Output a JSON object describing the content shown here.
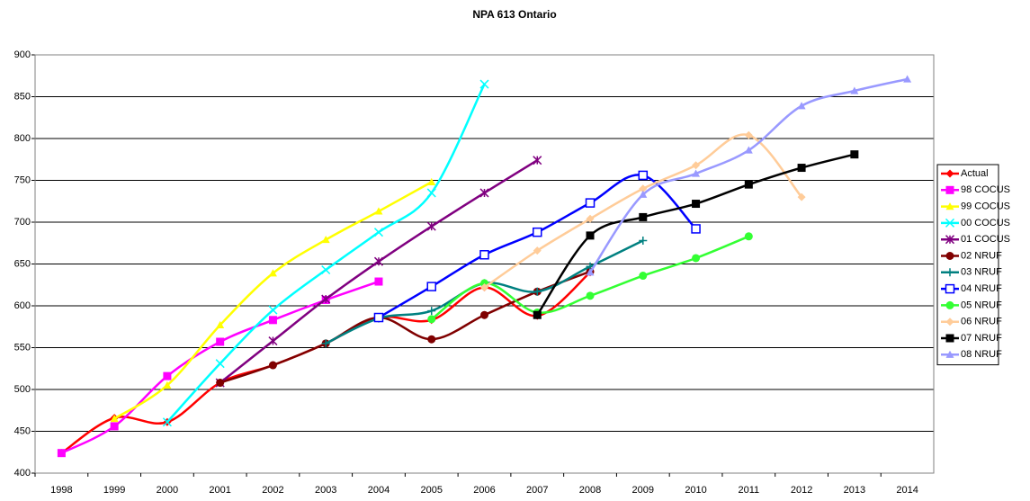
{
  "chart_data": {
    "type": "line",
    "title": "NPA 613 Ontario",
    "categories": [
      "1998",
      "1999",
      "2000",
      "2001",
      "2002",
      "2003",
      "2004",
      "2005",
      "2006",
      "2007",
      "2008",
      "2009",
      "2010",
      "2011",
      "2012",
      "2013",
      "2014"
    ],
    "ylim": [
      400,
      900
    ],
    "yticks": [
      400,
      450,
      500,
      550,
      600,
      650,
      700,
      750,
      800,
      850,
      900
    ],
    "grid": true,
    "smooth": true,
    "legend": "right",
    "series": [
      {
        "name": "Actual",
        "color": "#ff0000",
        "marker": "diamond",
        "values": [
          424,
          466,
          461,
          508,
          529,
          555,
          586,
          583,
          622,
          588,
          640,
          null,
          null,
          null,
          null,
          null,
          null
        ]
      },
      {
        "name": "98 COCUS",
        "color": "#ff00ff",
        "marker": "square",
        "values": [
          424,
          456,
          516,
          557,
          583,
          607,
          629,
          null,
          null,
          null,
          null,
          null,
          null,
          null,
          null,
          null,
          null
        ]
      },
      {
        "name": "99 COCUS",
        "color": "#ffff00",
        "marker": "triangle",
        "values": [
          null,
          465,
          505,
          577,
          639,
          679,
          713,
          748,
          null,
          null,
          null,
          null,
          null,
          null,
          null,
          null,
          null
        ]
      },
      {
        "name": "00 COCUS",
        "color": "#00ffff",
        "marker": "x",
        "values": [
          null,
          null,
          461,
          531,
          595,
          643,
          688,
          735,
          865,
          null,
          null,
          null,
          null,
          null,
          null,
          null,
          null
        ]
      },
      {
        "name": "01 COCUS",
        "color": "#800080",
        "marker": "star",
        "values": [
          null,
          null,
          null,
          508,
          558,
          608,
          653,
          695,
          735,
          774,
          null,
          null,
          null,
          null,
          null,
          null,
          null
        ]
      },
      {
        "name": "02 NRUF",
        "color": "#800000",
        "marker": "circle",
        "values": [
          null,
          null,
          null,
          508,
          529,
          555,
          586,
          560,
          589,
          617,
          641,
          null,
          null,
          null,
          null,
          null,
          null
        ]
      },
      {
        "name": "03 NRUF",
        "color": "#008080",
        "marker": "plus",
        "values": [
          null,
          null,
          null,
          null,
          null,
          555,
          585,
          594,
          627,
          617,
          647,
          678,
          null,
          null,
          null,
          null,
          null
        ]
      },
      {
        "name": "04 NRUF",
        "color": "#0000ff",
        "marker": "opensquare",
        "values": [
          null,
          null,
          null,
          null,
          null,
          null,
          586,
          623,
          661,
          688,
          723,
          756,
          692,
          null,
          null,
          null,
          null
        ]
      },
      {
        "name": "05 NRUF",
        "color": "#33ff33",
        "marker": "circle",
        "values": [
          null,
          null,
          null,
          null,
          null,
          null,
          null,
          584,
          627,
          592,
          612,
          636,
          657,
          683,
          null,
          null,
          null
        ]
      },
      {
        "name": "06 NRUF",
        "color": "#ffcc99",
        "marker": "diamond",
        "values": [
          null,
          null,
          null,
          null,
          null,
          null,
          null,
          null,
          622,
          666,
          704,
          740,
          768,
          804,
          730,
          null,
          null
        ]
      },
      {
        "name": "07 NRUF",
        "color": "#000000",
        "marker": "square",
        "values": [
          null,
          null,
          null,
          null,
          null,
          null,
          null,
          null,
          null,
          589,
          684,
          706,
          722,
          745,
          765,
          781,
          null
        ]
      },
      {
        "name": "08 NRUF",
        "color": "#9999ff",
        "marker": "triangle",
        "values": [
          null,
          null,
          null,
          null,
          null,
          null,
          null,
          null,
          null,
          null,
          640,
          733,
          758,
          786,
          839,
          857,
          871
        ]
      }
    ]
  }
}
